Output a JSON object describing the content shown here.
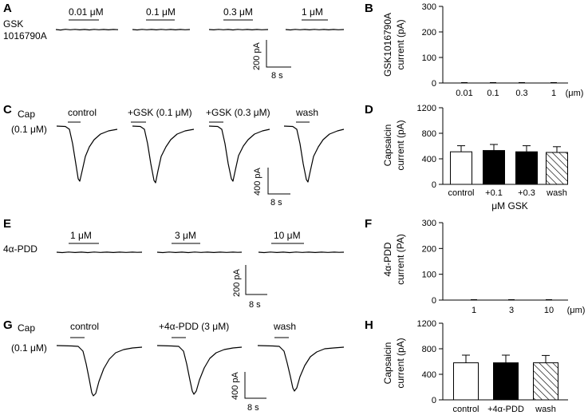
{
  "panels": {
    "A": {
      "letter": "A",
      "agent_line1": "GSK",
      "agent_line2": "1016790A",
      "concentrations": [
        "0.01 μM",
        "0.1 μM",
        "0.3 μM",
        "1 μM"
      ],
      "scale_amplitude": "200 pA",
      "scale_time": "8 s"
    },
    "C": {
      "letter": "C",
      "agent_line1": "Cap",
      "agent_line2": "(0.1 μM)",
      "conditions": [
        "control",
        "+GSK (0.1 μM)",
        "+GSK (0.3 μM)",
        "wash"
      ],
      "scale_amplitude": "400 pA",
      "scale_time": "8 s"
    },
    "E": {
      "letter": "E",
      "agent_line1": "4α-PDD",
      "concentrations": [
        "1 μM",
        "3 μM",
        "10 μM"
      ],
      "scale_amplitude": "200 pA",
      "scale_time": "8 s"
    },
    "G": {
      "letter": "G",
      "agent_line1": "Cap",
      "agent_line2": "(0.1 μM)",
      "conditions": [
        "control",
        "+4α-PDD (3 μM)",
        "wash"
      ],
      "scale_amplitude": "400 pA",
      "scale_time": "8 s"
    }
  },
  "chart_data": [
    {
      "panel": "B",
      "type": "bar",
      "ylabel_line1": "GSK1016790A",
      "ylabel_line2": "current (pA)",
      "categories": [
        "0.01",
        "0.1",
        "0.3",
        "1"
      ],
      "unit_label": "(μm)",
      "values": [
        0,
        0,
        0,
        0
      ],
      "errors": [
        0,
        0,
        0,
        0
      ],
      "ylim": [
        0,
        300
      ],
      "yticks": [
        0,
        100,
        200,
        300
      ],
      "fills": [
        "none",
        "none",
        "none",
        "none"
      ]
    },
    {
      "panel": "D",
      "type": "bar",
      "ylabel_line1": "Capsaicin",
      "ylabel_line2": "current (pA)",
      "categories": [
        "control",
        "+0.1",
        "+0.3",
        "wash"
      ],
      "group_label": "μM GSK",
      "values": [
        510,
        530,
        510,
        500
      ],
      "errors": [
        95,
        95,
        95,
        90
      ],
      "ylim": [
        0,
        1200
      ],
      "yticks": [
        0,
        400,
        800,
        1200
      ],
      "fills": [
        "white",
        "black",
        "black",
        "hatch"
      ]
    },
    {
      "panel": "F",
      "type": "bar",
      "ylabel_line1": "4α-PDD",
      "ylabel_line2": "current (PA)",
      "categories": [
        "1",
        "3",
        "10"
      ],
      "unit_label": "(μm)",
      "values": [
        0,
        0,
        0
      ],
      "errors": [
        0,
        0,
        0
      ],
      "ylim": [
        0,
        300
      ],
      "yticks": [
        0,
        100,
        200,
        300
      ],
      "fills": [
        "none",
        "none",
        "none"
      ]
    },
    {
      "panel": "H",
      "type": "bar",
      "ylabel_line1": "Capsaicin",
      "ylabel_line2": "current (pA)",
      "categories": [
        "control",
        "+4α-PDD",
        "wash"
      ],
      "values": [
        580,
        580,
        580
      ],
      "errors": [
        120,
        120,
        115
      ],
      "ylim": [
        0,
        1200
      ],
      "yticks": [
        0,
        400,
        800,
        1200
      ],
      "fills": [
        "white",
        "black",
        "hatch"
      ]
    }
  ]
}
